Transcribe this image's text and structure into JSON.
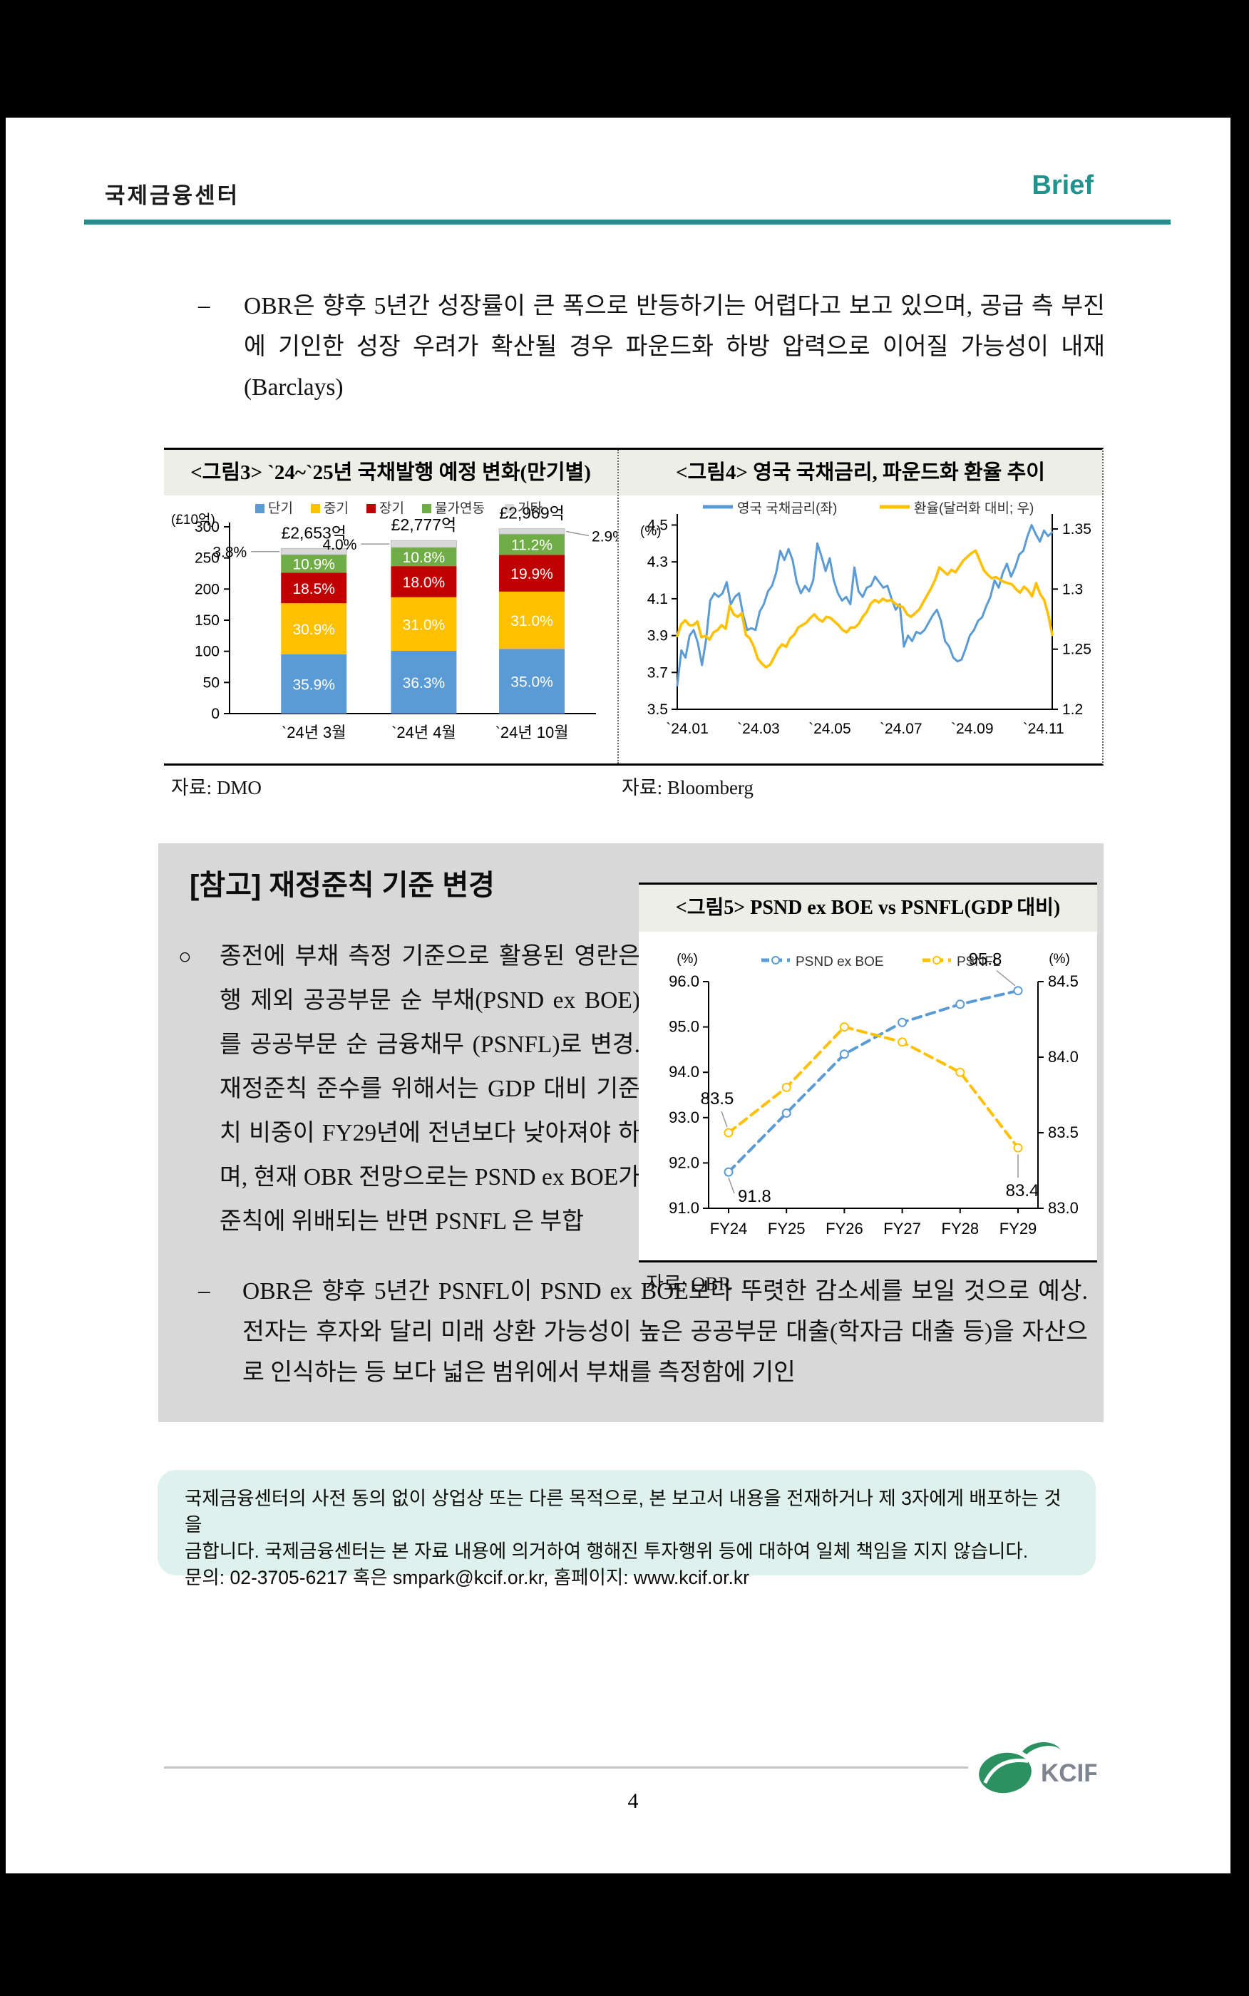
{
  "header": {
    "org": "국제금융센터",
    "brand": "Brief"
  },
  "bullets": {
    "b1_dash": "–",
    "b1_text": "OBR은 향후 5년간 성장률이 큰 폭으로 반등하기는 어렵다고 보고 있으며, 공급 측 부진에 기인한 성장 우려가 확산될 경우 파운드화 하방 압력으로 이어질 가능성이 내재(Barclays)"
  },
  "refbox": {
    "title": "[참고] 재정준칙 기준 변경",
    "bullet_mark": "○",
    "para1": "종전에 부채 측정 기준으로 활용된 영란은행 제외 공공부문 순 부채(PSND ex BOE)를 공공부문 순 금융채무 (PSNFL)로 변경. 재정준칙 준수를 위해서는 GDP 대비 기준치 비중이 FY29년에 전년보다 낮아져야 하며, 현재 OBR 전망으로는 PSND ex BOE가 준칙에 위배되는 반면 PSNFL 은 부합",
    "bullet2_dash": "–",
    "bullet2_text": "OBR은 향후 5년간 PSNFL이 PSND ex BOE보다 뚜렷한 감소세를 보일 것으로 예상. 전자는 후자와 달리 미래 상환 가능성이 높은 공공부문 대출(학자금 대출 등)을 자산으로 인식하는 등 보다 넓은 범위에서 부채를 측정함에 기인"
  },
  "disclaimer": {
    "line1": "국제금융센터의 사전 동의 없이 상업상 또는 다른 목적으로, 본 보고서 내용을 전재하거나 제 3자에게 배포하는 것을",
    "line2": "금합니다. 국제금융센터는 본 자료 내용에 의거하여 행해진 투자행위 등에 대하여 일체 책임을 지지 않습니다.",
    "line3": "문의: 02-3705-6217 혹은 smpark@kcif.or.kr, 홈페이지: www.kcif.or.kr"
  },
  "footer": {
    "page_number": "4",
    "logo_text": "KCIF"
  },
  "chart_data": [
    {
      "id": "fig3",
      "type": "bar",
      "title": "<그림3> `24~`25년 국채발행 예정 변화(만기별)",
      "source": "자료: DMO",
      "unit_label": "(£10억)",
      "ylim": [
        0,
        300
      ],
      "yticks": [
        0,
        50,
        100,
        150,
        200,
        250,
        300
      ],
      "categories": [
        "`24년 3월",
        "`24년 4월",
        "`24년 10월"
      ],
      "totals": [
        265.3,
        277.7,
        296.9
      ],
      "total_labels": [
        "£2,653억",
        "£2,777억",
        "£2,969억"
      ],
      "values_are": "percent_of_total",
      "series": [
        {
          "name": "단기",
          "color": "#5B9BD5",
          "values": [
            35.9,
            36.3,
            35.0
          ]
        },
        {
          "name": "중기",
          "color": "#FFC000",
          "values": [
            30.9,
            31.0,
            31.0
          ]
        },
        {
          "name": "장기",
          "color": "#C00000",
          "values": [
            18.5,
            18.0,
            19.9
          ]
        },
        {
          "name": "물가연동",
          "color": "#70AD47",
          "values": [
            10.9,
            10.8,
            11.2
          ]
        },
        {
          "name": "기타",
          "color": "#D9D9D9",
          "values": [
            3.8,
            4.0,
            2.9
          ]
        }
      ],
      "callouts": [
        "3.8%",
        "4.0%",
        "2.9%"
      ],
      "callout_sides": [
        "left",
        "left",
        "right"
      ]
    },
    {
      "id": "fig4",
      "type": "line",
      "title": "<그림4> 영국 국채금리, 파운드화 환율 추이",
      "source": "자료: Bloomberg",
      "left_axis_label": "(%)",
      "left_range": [
        3.5,
        4.56
      ],
      "left_ticks": [
        "3.5",
        "3.7",
        "3.9",
        "4.1",
        "4.3",
        "4.5"
      ],
      "right_range": [
        1.2,
        1.3625
      ],
      "right_ticks": [
        "1.2",
        "1.25",
        "1.3",
        "1.35"
      ],
      "x_ticks": [
        "`24.01",
        "`24.03",
        "`24.05",
        "`24.07",
        "`24.09",
        "`24.11"
      ],
      "x_tick_pos": [
        0,
        0.19,
        0.38,
        0.57,
        0.76,
        0.95
      ],
      "series": [
        {
          "name": "영국 국채금리(좌)",
          "axis": "left",
          "color": "#5B9BD5",
          "values": [
            3.63,
            3.82,
            3.78,
            3.9,
            3.93,
            3.86,
            3.74,
            3.88,
            4.09,
            4.13,
            4.11,
            4.13,
            4.19,
            4.07,
            4.11,
            4.13,
            4.01,
            3.93,
            3.94,
            3.93,
            4.03,
            4.07,
            4.14,
            4.17,
            4.24,
            4.36,
            4.31,
            4.37,
            4.31,
            4.19,
            4.13,
            4.17,
            4.14,
            4.2,
            4.4,
            4.33,
            4.25,
            4.32,
            4.2,
            4.13,
            4.09,
            4.11,
            4.07,
            4.27,
            4.14,
            4.11,
            4.16,
            4.17,
            4.22,
            4.19,
            4.16,
            4.17,
            4.1,
            4.04,
            4.07,
            3.84,
            3.9,
            3.87,
            3.92,
            3.91,
            3.93,
            3.97,
            4.01,
            4.04,
            3.98,
            3.87,
            3.84,
            3.78,
            3.76,
            3.77,
            3.83,
            3.9,
            3.93,
            3.98,
            4.0,
            4.06,
            4.11,
            4.2,
            4.16,
            4.24,
            4.29,
            4.22,
            4.27,
            4.34,
            4.36,
            4.44,
            4.5,
            4.45,
            4.41,
            4.47,
            4.44,
            4.46
          ]
        },
        {
          "name": "환율(달러화 대비; 우)",
          "axis": "right",
          "color": "#FFC000",
          "values": [
            1.261,
            1.271,
            1.274,
            1.27,
            1.27,
            1.273,
            1.26,
            1.261,
            1.258,
            1.264,
            1.266,
            1.27,
            1.267,
            1.286,
            1.279,
            1.277,
            1.28,
            1.262,
            1.259,
            1.252,
            1.242,
            1.238,
            1.235,
            1.237,
            1.243,
            1.25,
            1.254,
            1.252,
            1.259,
            1.262,
            1.268,
            1.27,
            1.272,
            1.276,
            1.279,
            1.275,
            1.273,
            1.277,
            1.276,
            1.273,
            1.27,
            1.266,
            1.264,
            1.268,
            1.268,
            1.271,
            1.277,
            1.281,
            1.288,
            1.291,
            1.289,
            1.292,
            1.29,
            1.291,
            1.288,
            1.286,
            1.285,
            1.279,
            1.277,
            1.28,
            1.283,
            1.289,
            1.295,
            1.301,
            1.308,
            1.318,
            1.315,
            1.312,
            1.316,
            1.314,
            1.319,
            1.324,
            1.327,
            1.33,
            1.332,
            1.324,
            1.316,
            1.312,
            1.309,
            1.31,
            1.308,
            1.306,
            1.305,
            1.304,
            1.3,
            1.297,
            1.302,
            1.299,
            1.294,
            1.305,
            1.296,
            1.291,
            1.279,
            1.262
          ]
        }
      ]
    },
    {
      "id": "fig5",
      "type": "line",
      "title": "<그림5> PSND ex BOE vs PSNFL(GDP 대비)",
      "source": "자료: OBR",
      "left_axis_label": "(%)",
      "right_axis_label": "(%)",
      "left_range": [
        91.0,
        96.0
      ],
      "left_ticks": [
        "91.0",
        "92.0",
        "93.0",
        "94.0",
        "95.0",
        "96.0"
      ],
      "right_range": [
        83.0,
        84.5
      ],
      "right_ticks": [
        "83.0",
        "83.5",
        "84.0",
        "84.5"
      ],
      "categories": [
        "FY24",
        "FY25",
        "FY26",
        "FY27",
        "FY28",
        "FY29"
      ],
      "series": [
        {
          "name": "PSND ex BOE",
          "axis": "left",
          "color": "#5B9BD5",
          "values": [
            91.8,
            93.1,
            94.4,
            95.1,
            95.5,
            95.8
          ]
        },
        {
          "name": "PSNFL",
          "axis": "right",
          "color": "#FFC000",
          "values": [
            83.5,
            83.8,
            84.2,
            84.1,
            83.9,
            83.4
          ]
        }
      ],
      "point_labels": [
        {
          "series": 0,
          "index": 0,
          "text": "91.8"
        },
        {
          "series": 0,
          "index": 5,
          "text": "95.8"
        },
        {
          "series": 1,
          "index": 0,
          "text": "83.5"
        },
        {
          "series": 1,
          "index": 5,
          "text": "83.4"
        }
      ]
    }
  ]
}
